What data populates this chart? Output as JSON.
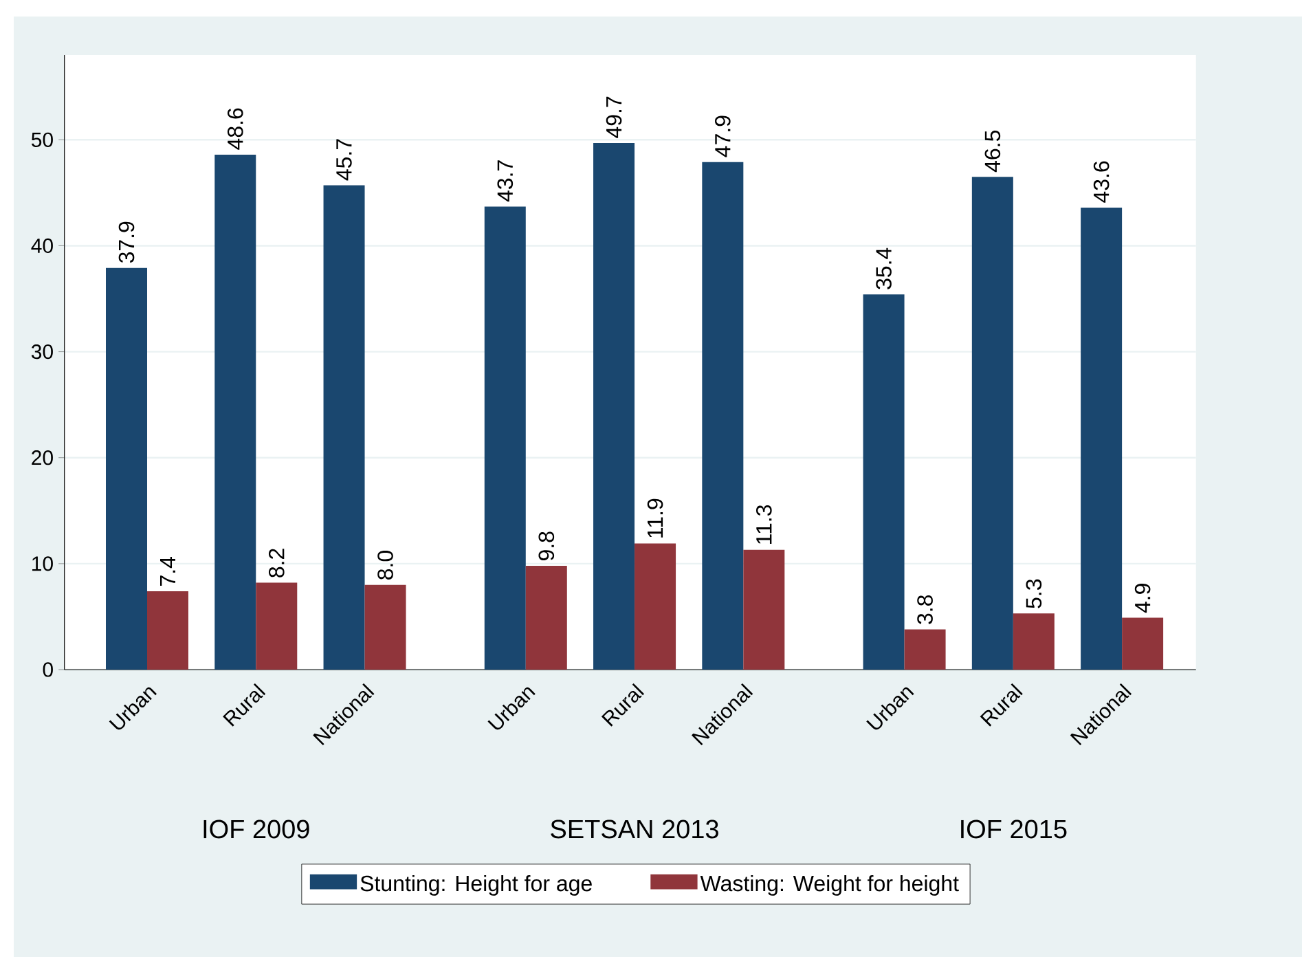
{
  "chart_data": {
    "type": "bar",
    "categories": [
      "Urban",
      "Rural",
      "National",
      "Urban",
      "Rural",
      "National",
      "Urban",
      "Rural",
      "National"
    ],
    "series": [
      {
        "name": "Stunting: Height for age",
        "color": "#1a476f",
        "values": [
          37.9,
          48.6,
          45.7,
          43.7,
          49.7,
          47.9,
          35.4,
          46.5,
          43.6
        ],
        "value_labels": [
          "37.9",
          "48.6",
          "45.7",
          "43.7",
          "49.7",
          "47.9",
          "35.4",
          "46.5",
          "43.6"
        ]
      },
      {
        "name": "Wasting: Weight for height",
        "color": "#90353b",
        "values": [
          7.4,
          8.2,
          8.0,
          9.8,
          11.9,
          11.3,
          3.8,
          5.3,
          4.9
        ],
        "value_labels": [
          "7.4",
          "8.2",
          "8.0",
          "9.8",
          "11.9",
          "11.3",
          "3.8",
          "5.3",
          "4.9"
        ]
      }
    ],
    "annotations": [
      "IOF 2009",
      "SETSAN 2013",
      "IOF 2015"
    ],
    "ylim": [
      0,
      58
    ],
    "yticks": [
      0,
      10,
      20,
      30,
      40,
      50
    ],
    "grid": "y",
    "legend": "bottom"
  }
}
